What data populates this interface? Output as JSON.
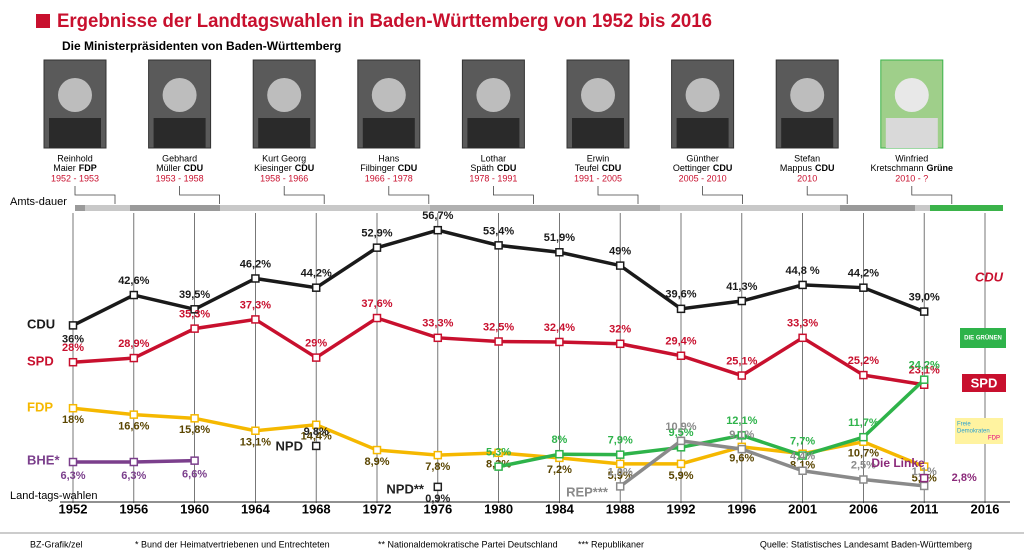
{
  "chart_data": {
    "type": "line",
    "title": "Ergebnisse der Landtagswahlen in Baden-Württemberg von 1952 bis 2016",
    "subtitle": "Die Ministerpräsidenten von Baden-Württemberg",
    "x_label_top": "Amts-dauer",
    "x_label": "Land-tags-wahlen",
    "categories": [
      "1952",
      "1956",
      "1960",
      "1964",
      "1968",
      "1972",
      "1976",
      "1980",
      "1984",
      "1988",
      "1992",
      "1996",
      "2001",
      "2006",
      "2011",
      "2016"
    ],
    "ylim": [
      0,
      60
    ],
    "series": [
      {
        "name": "CDU",
        "color": "#1a1a1a",
        "values": [
          36,
          42.6,
          39.5,
          46.2,
          44.2,
          52.9,
          56.7,
          53.4,
          51.9,
          49,
          39.6,
          41.3,
          44.8,
          44.2,
          39.0,
          null
        ],
        "value_labels": [
          "36%",
          "42,6%",
          "39,5%",
          "46,2%",
          "44,2%",
          "52,9%",
          "56,7%",
          "53,4%",
          "51,9%",
          "49%",
          "39,6%",
          "41,3%",
          "44,8 %",
          "44,2%",
          "39,0%",
          null
        ]
      },
      {
        "name": "SPD",
        "color": "#c8102e",
        "values": [
          28,
          28.9,
          35.3,
          37.3,
          29,
          37.6,
          33.3,
          32.5,
          32.4,
          32,
          29.4,
          25.1,
          33.3,
          25.2,
          23.1,
          null
        ],
        "value_labels": [
          "28%",
          "28,9%",
          "35,3%",
          "37,3%",
          "29%",
          "37,6%",
          "33,3%",
          "32,5%",
          "32,4%",
          "32%",
          "29,4%",
          "25,1%",
          "33,3%",
          "25,2%",
          "23,1%",
          null
        ]
      },
      {
        "name": "FDP",
        "color": "#f5b800",
        "values": [
          18,
          16.6,
          15.8,
          13.1,
          14.4,
          8.9,
          7.8,
          8.3,
          7.2,
          5.9,
          5.9,
          9.6,
          8.1,
          10.7,
          5.3,
          null
        ],
        "value_labels": [
          "18%",
          "16,6%",
          "15,8%",
          "13,1%",
          "14,4%",
          "8,9%",
          "7,8%",
          "8,3%",
          "7,2%",
          "5,9%",
          "5,9%",
          "9,6%",
          "8,1%",
          "10,7%",
          "5,3%",
          null
        ]
      },
      {
        "name": "BHE*",
        "color": "#7b3f8c",
        "values": [
          6.3,
          6.3,
          6.6,
          null,
          null,
          null,
          null,
          null,
          null,
          null,
          null,
          null,
          null,
          null,
          null,
          null
        ],
        "value_labels": [
          "6,3%",
          "6,3%",
          "6,6%",
          null,
          null,
          null,
          null,
          null,
          null,
          null,
          null,
          null,
          null,
          null,
          null,
          null
        ]
      },
      {
        "name": "NPD",
        "color": "#222222",
        "values": [
          null,
          null,
          null,
          null,
          9.8,
          null,
          null,
          null,
          null,
          null,
          null,
          null,
          null,
          null,
          null,
          null
        ],
        "value_labels": [
          null,
          null,
          null,
          null,
          "9,8%",
          null,
          null,
          null,
          null,
          null,
          null,
          null,
          null,
          null,
          null,
          null
        ]
      },
      {
        "name": "NPD**",
        "color": "#222222",
        "values": [
          null,
          null,
          null,
          null,
          null,
          null,
          0.9,
          null,
          null,
          null,
          null,
          null,
          null,
          null,
          null,
          null
        ],
        "value_labels": [
          null,
          null,
          null,
          null,
          null,
          null,
          "0,9%",
          null,
          null,
          null,
          null,
          null,
          null,
          null,
          null,
          null
        ]
      },
      {
        "name": "DIE GRÜNEN",
        "color": "#2eb34a",
        "values": [
          null,
          null,
          null,
          null,
          null,
          null,
          null,
          5.3,
          8,
          7.9,
          9.5,
          12.1,
          7.7,
          11.7,
          24.2,
          null
        ],
        "value_labels": [
          null,
          null,
          null,
          null,
          null,
          null,
          null,
          "5,3%",
          "8%",
          "7,9%",
          "9,5%",
          "12,1%",
          "7,7%",
          "11,7%",
          "24,2%",
          null
        ]
      },
      {
        "name": "REP***",
        "color": "#8a8a8a",
        "values": [
          null,
          null,
          null,
          null,
          null,
          null,
          null,
          null,
          null,
          1.0,
          10.9,
          9.1,
          4.4,
          2.5,
          1.1,
          null
        ],
        "value_labels": [
          null,
          null,
          null,
          null,
          null,
          null,
          null,
          null,
          null,
          "1,0%",
          "10,9%",
          "9,1%",
          "4,4%",
          "2,5%",
          "1,1%",
          null
        ]
      },
      {
        "name": "Die Linke",
        "color": "#8b2a7a",
        "values": [
          null,
          null,
          null,
          null,
          null,
          null,
          null,
          null,
          null,
          null,
          null,
          null,
          null,
          null,
          2.8,
          null
        ],
        "value_labels": [
          null,
          null,
          null,
          null,
          null,
          null,
          null,
          null,
          null,
          null,
          null,
          null,
          null,
          null,
          "2,8%",
          null
        ]
      }
    ]
  },
  "leaders": [
    {
      "first": "Reinhold",
      "last": "Maier",
      "party": "FDP",
      "term": "1952 - 1953"
    },
    {
      "first": "Gebhard",
      "last": "Müller",
      "party": "CDU",
      "term": "1953 - 1958"
    },
    {
      "first": "Kurt Georg",
      "last": "Kiesinger",
      "party": "CDU",
      "term": "1958 - 1966"
    },
    {
      "first": "Hans",
      "last": "Filbinger",
      "party": "CDU",
      "term": "1966 - 1978"
    },
    {
      "first": "Lothar",
      "last": "Späth",
      "party": "CDU",
      "term": "1978 - 1991"
    },
    {
      "first": "Erwin",
      "last": "Teufel",
      "party": "CDU",
      "term": "1991 - 2005"
    },
    {
      "first": "Günther",
      "last": "Oettinger",
      "party": "CDU",
      "term": "2005 - 2010"
    },
    {
      "first": "Stefan",
      "last": "Mappus",
      "party": "CDU",
      "term": "2010"
    },
    {
      "first": "Winfried",
      "last": "Kretschmann",
      "party": "Grüne",
      "term": "2010 - ?"
    }
  ],
  "logos": {
    "fdp_line1": "Freie",
    "fdp_line2": "Demokraten",
    "fdp_line3": "FDP"
  },
  "footer": {
    "credit": "BZ-Grafik/zel",
    "note1": "* Bund der Heimatvertriebenen und Entrechteten",
    "note2": "** Nationaldemokratische Partei Deutschland",
    "note3": "*** Republikaner",
    "source": "Quelle: Statistisches Landesamt Baden-Württemberg"
  }
}
